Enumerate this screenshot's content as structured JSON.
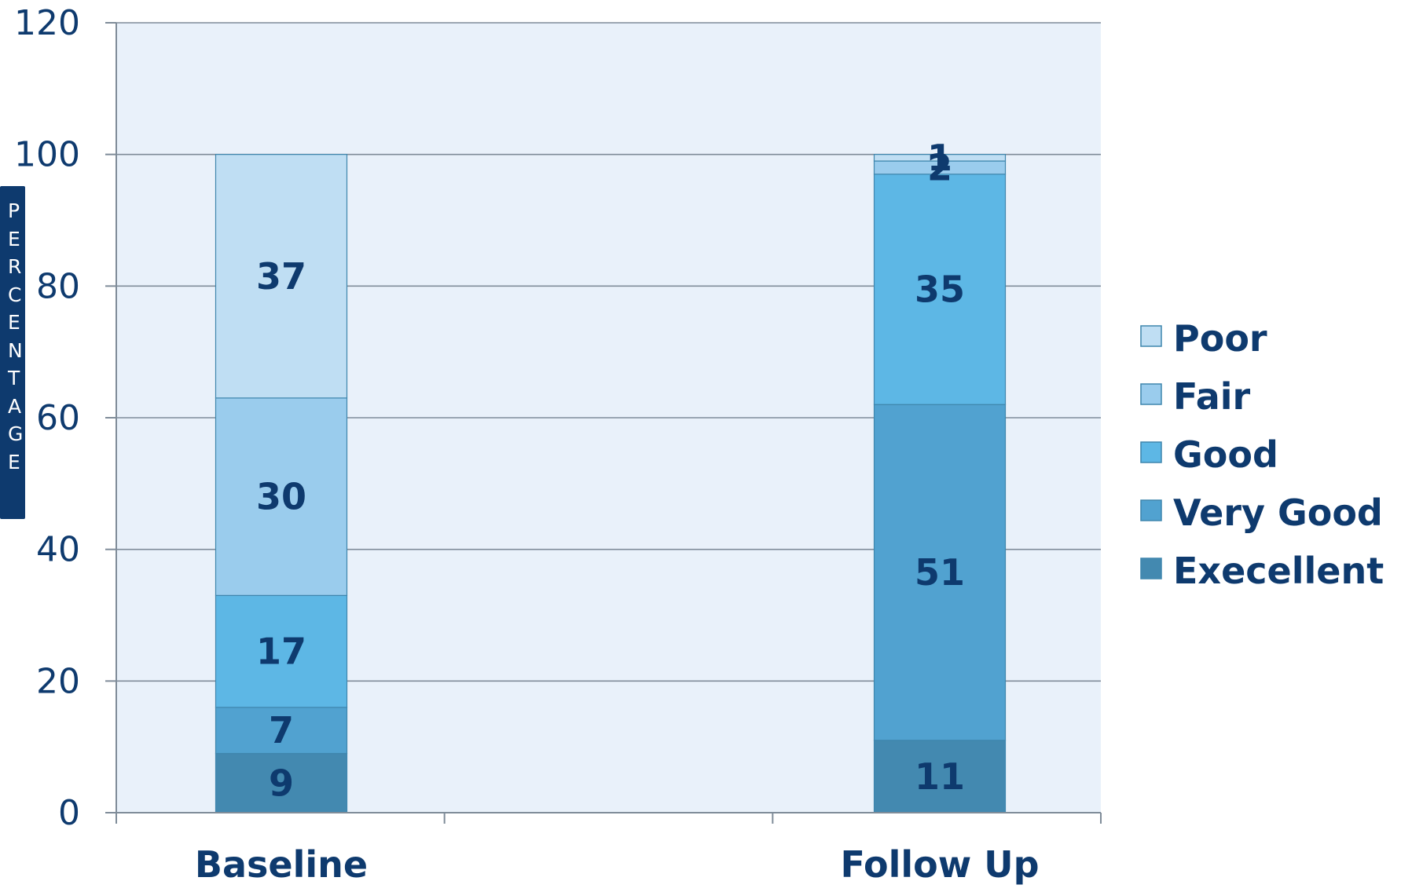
{
  "chart_data": {
    "type": "bar",
    "stacked": true,
    "categories": [
      "Baseline",
      "Follow Up"
    ],
    "series": [
      {
        "name": "Execellent",
        "values": [
          9,
          11
        ],
        "color": "#4389b0"
      },
      {
        "name": "Very Good",
        "values": [
          7,
          51
        ],
        "color": "#51a2d0"
      },
      {
        "name": "Good",
        "values": [
          17,
          35
        ],
        "color": "#5db7e5"
      },
      {
        "name": "Fair",
        "values": [
          30,
          2
        ],
        "color": "#9acced"
      },
      {
        "name": "Poor",
        "values": [
          37,
          1
        ],
        "color": "#bfdef3"
      }
    ],
    "data_labels": true,
    "ylabel": "PERCENTAGE",
    "xlabel": "",
    "title": "",
    "ylim": [
      0,
      120
    ],
    "yticks": [
      "0",
      "20",
      "40",
      "60",
      "80",
      "100",
      "120"
    ],
    "grid": true,
    "legend_position": "right",
    "legend_order": [
      "Poor",
      "Fair",
      "Good",
      "Very Good",
      "Execellent"
    ],
    "colors": {
      "plot_background": "#e9f1fa",
      "text": "#0e3a6e",
      "axis": "#7f8c99",
      "ylabel_box": "#0e3a6e"
    }
  }
}
